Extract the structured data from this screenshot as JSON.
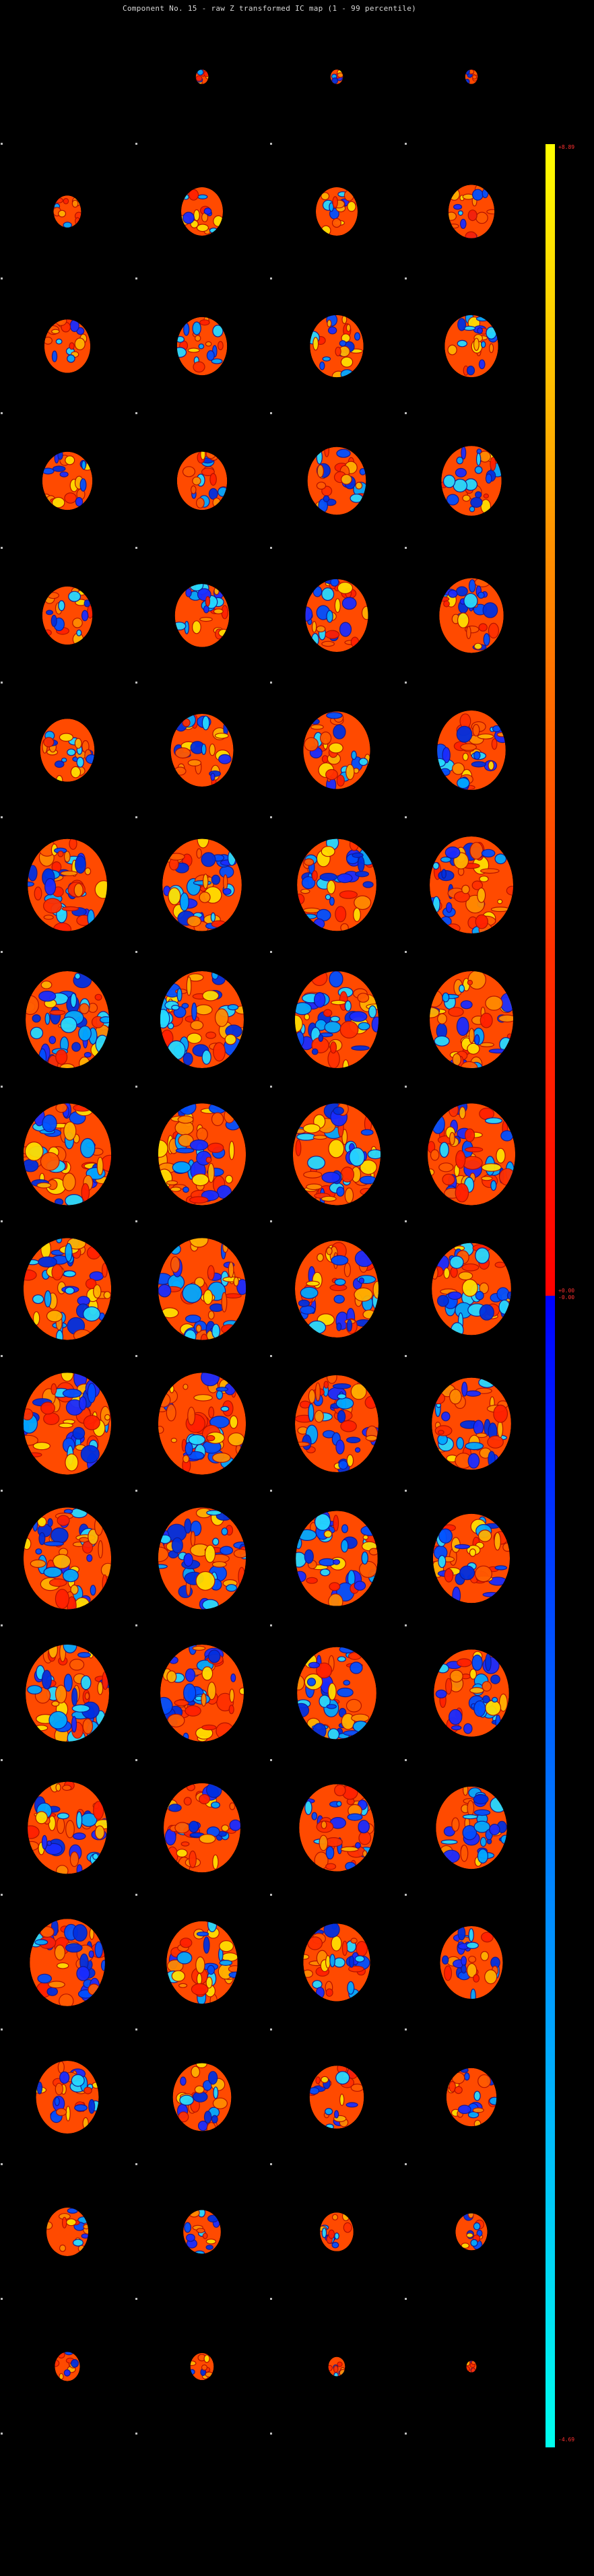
{
  "title": "Component No. 15 - raw Z transformed IC map (1 - 99 percentile)",
  "colorbar": {
    "max_label": "+8.89",
    "mid_pos_label": "+0.00",
    "mid_neg_label": "-0.00",
    "min_label": "-4.69",
    "pos_colors": [
      "#ffff00",
      "#ff9000",
      "#ff3000",
      "#ff0000"
    ],
    "neg_colors": [
      "#0000ff",
      "#0050ff",
      "#00a8ff",
      "#00ffee"
    ],
    "label_color": "#ff3030"
  },
  "grid": {
    "columns": 4,
    "rows": 18,
    "cells": [
      [
        0,
        0.15,
        0.15,
        0.15
      ],
      [
        0.33,
        0.5,
        0.5,
        0.55
      ],
      [
        0.55,
        0.6,
        0.64,
        0.64
      ],
      [
        0.6,
        0.6,
        0.7,
        0.72
      ],
      [
        0.6,
        0.65,
        0.75,
        0.77
      ],
      [
        0.65,
        0.75,
        0.8,
        0.82
      ],
      [
        0.95,
        0.95,
        0.95,
        1.0
      ],
      [
        1,
        1,
        1,
        1
      ],
      [
        1.05,
        1.05,
        1.05,
        1.05
      ],
      [
        1.05,
        1.05,
        1.0,
        0.95
      ],
      [
        1.05,
        1.05,
        1.0,
        0.95
      ],
      [
        1.05,
        1.05,
        0.98,
        0.92
      ],
      [
        1.0,
        1.0,
        0.95,
        0.9
      ],
      [
        0.95,
        0.92,
        0.9,
        0.85
      ],
      [
        0.9,
        0.85,
        0.8,
        0.75
      ],
      [
        0.75,
        0.7,
        0.65,
        0.6
      ],
      [
        0.5,
        0.45,
        0.4,
        0.38
      ],
      [
        0.3,
        0.28,
        0.2,
        0.12
      ]
    ]
  }
}
